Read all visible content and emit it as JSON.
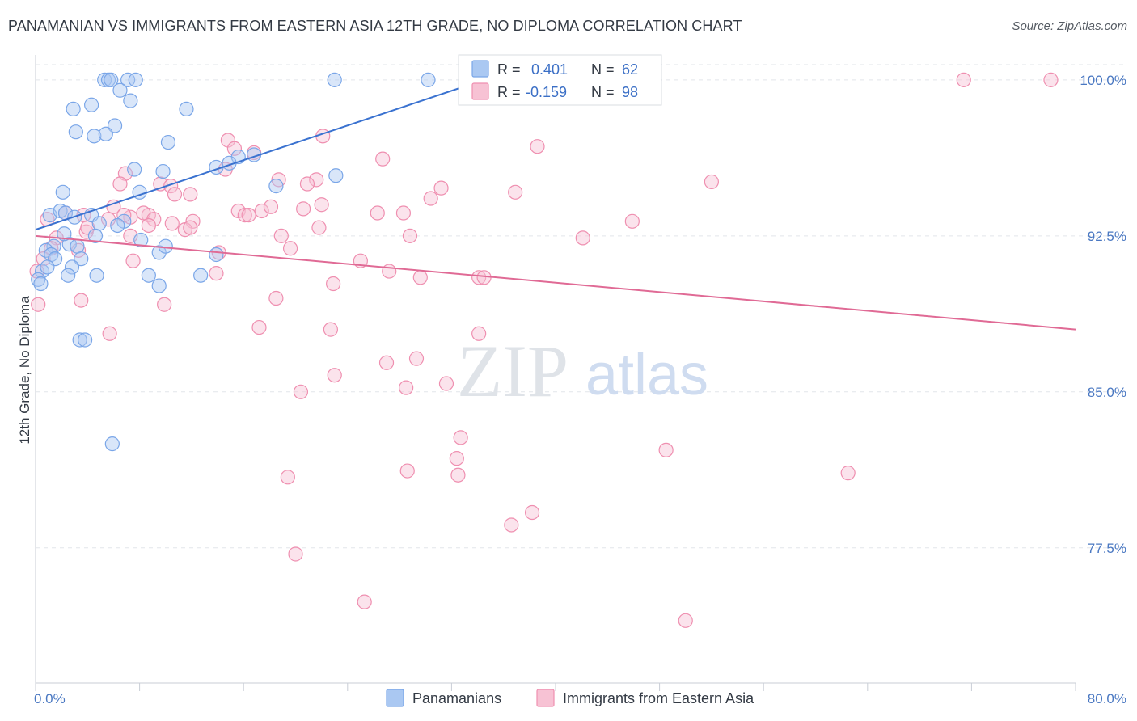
{
  "title": "PANAMANIAN VS IMMIGRANTS FROM EASTERN ASIA 12TH GRADE, NO DIPLOMA CORRELATION CHART",
  "source": "Source: ZipAtlas.com",
  "watermark": {
    "zip": "ZIP",
    "atlas": "atlas"
  },
  "colors": {
    "blue": "#7aa6e8",
    "blue_fill": "#aac8f2",
    "blue_line": "#3a72d0",
    "pink": "#ef8fb0",
    "pink_fill": "#f7c2d4",
    "pink_line": "#e06a95",
    "tick": "#4a78c2"
  },
  "stats_legend": {
    "r_label": "R =",
    "n_label": "N =",
    "rows": [
      {
        "r": "0.401",
        "n": "62",
        "series": "blue"
      },
      {
        "r": "-0.159",
        "n": "98",
        "series": "pink"
      }
    ]
  },
  "chart_data": {
    "type": "scatter",
    "title": "PANAMANIAN VS IMMIGRANTS FROM EASTERN ASIA 12TH GRADE, NO DIPLOMA CORRELATION CHART",
    "xlabel": "",
    "ylabel": "12th Grade, No Diploma",
    "xlim": [
      0,
      80
    ],
    "ylim": [
      71.0,
      101.2
    ],
    "x_tick_labels": [
      "0.0%",
      "80.0%"
    ],
    "y_ticks": [
      77.5,
      85.0,
      92.5,
      100.0
    ],
    "y_tick_labels": [
      "77.5%",
      "85.0%",
      "92.5%",
      "100.0%"
    ],
    "grid": "horizontal dashed",
    "legend_position": "bottom-center",
    "series": [
      {
        "name": "Panamanians",
        "color": "blue",
        "trend": [
          [
            0.0,
            92.8
          ],
          [
            34.5,
            100.0
          ]
        ],
        "points": [
          [
            5.3,
            100
          ],
          [
            5.6,
            100
          ],
          [
            5.8,
            100
          ],
          [
            7.1,
            100
          ],
          [
            7.7,
            100
          ],
          [
            23.0,
            100
          ],
          [
            30.2,
            100
          ],
          [
            40.5,
            100
          ],
          [
            6.5,
            99.5
          ],
          [
            7.3,
            99.0
          ],
          [
            4.3,
            98.8
          ],
          [
            2.9,
            98.6
          ],
          [
            11.6,
            98.6
          ],
          [
            6.1,
            97.8
          ],
          [
            3.1,
            97.5
          ],
          [
            4.5,
            97.3
          ],
          [
            5.4,
            97.4
          ],
          [
            10.2,
            97.0
          ],
          [
            15.6,
            96.3
          ],
          [
            16.8,
            96.4
          ],
          [
            14.9,
            96.0
          ],
          [
            7.6,
            95.7
          ],
          [
            9.8,
            95.6
          ],
          [
            23.1,
            95.4
          ],
          [
            18.5,
            94.9
          ],
          [
            2.1,
            94.6
          ],
          [
            8.0,
            94.6
          ],
          [
            1.1,
            93.5
          ],
          [
            1.9,
            93.7
          ],
          [
            2.3,
            93.6
          ],
          [
            3.0,
            93.4
          ],
          [
            4.3,
            93.5
          ],
          [
            4.9,
            93.1
          ],
          [
            6.8,
            93.2
          ],
          [
            4.6,
            92.5
          ],
          [
            8.1,
            92.3
          ],
          [
            1.4,
            92.0
          ],
          [
            2.6,
            92.1
          ],
          [
            3.2,
            92.0
          ],
          [
            0.8,
            91.8
          ],
          [
            1.2,
            91.6
          ],
          [
            1.5,
            91.4
          ],
          [
            3.5,
            91.4
          ],
          [
            9.5,
            91.7
          ],
          [
            10.0,
            92.0
          ],
          [
            13.9,
            91.6
          ],
          [
            2.8,
            91.0
          ],
          [
            0.5,
            90.8
          ],
          [
            2.5,
            90.6
          ],
          [
            4.7,
            90.6
          ],
          [
            8.7,
            90.6
          ],
          [
            12.7,
            90.6
          ],
          [
            0.2,
            90.4
          ],
          [
            0.4,
            90.2
          ],
          [
            9.5,
            90.1
          ],
          [
            3.4,
            87.5
          ],
          [
            3.8,
            87.5
          ],
          [
            5.9,
            82.5
          ],
          [
            13.9,
            95.8
          ],
          [
            2.2,
            92.6
          ],
          [
            0.9,
            91.0
          ],
          [
            6.3,
            93.0
          ]
        ]
      },
      {
        "name": "Immigrants from Eastern Asia",
        "color": "pink",
        "trend": [
          [
            0.0,
            92.5
          ],
          [
            80.0,
            88.0
          ]
        ],
        "points": [
          [
            38.0,
            100
          ],
          [
            42.3,
            100
          ],
          [
            71.4,
            100
          ],
          [
            78.1,
            100
          ],
          [
            37.8,
            99.5
          ],
          [
            14.8,
            97.1
          ],
          [
            22.1,
            97.3
          ],
          [
            38.6,
            96.8
          ],
          [
            15.3,
            96.7
          ],
          [
            16.8,
            96.5
          ],
          [
            26.7,
            96.2
          ],
          [
            14.6,
            95.7
          ],
          [
            6.9,
            95.5
          ],
          [
            18.7,
            95.2
          ],
          [
            21.6,
            95.2
          ],
          [
            52.0,
            95.1
          ],
          [
            6.5,
            95.0
          ],
          [
            9.6,
            95.0
          ],
          [
            10.4,
            94.9
          ],
          [
            20.9,
            95.0
          ],
          [
            31.2,
            94.8
          ],
          [
            36.9,
            94.6
          ],
          [
            10.7,
            94.5
          ],
          [
            11.9,
            94.5
          ],
          [
            30.4,
            94.3
          ],
          [
            6.0,
            93.9
          ],
          [
            15.6,
            93.7
          ],
          [
            17.4,
            93.7
          ],
          [
            18.1,
            93.9
          ],
          [
            20.6,
            93.8
          ],
          [
            22.0,
            94.0
          ],
          [
            8.7,
            93.5
          ],
          [
            16.1,
            93.5
          ],
          [
            5.6,
            93.3
          ],
          [
            3.7,
            93.5
          ],
          [
            0.9,
            93.3
          ],
          [
            2.3,
            93.6
          ],
          [
            7.3,
            93.4
          ],
          [
            8.3,
            93.6
          ],
          [
            9.1,
            93.3
          ],
          [
            10.5,
            93.1
          ],
          [
            12.1,
            93.2
          ],
          [
            16.4,
            93.5
          ],
          [
            26.3,
            93.6
          ],
          [
            28.3,
            93.6
          ],
          [
            45.9,
            93.2
          ],
          [
            6.8,
            93.5
          ],
          [
            8.7,
            93.0
          ],
          [
            11.5,
            92.8
          ],
          [
            11.9,
            92.9
          ],
          [
            21.8,
            92.9
          ],
          [
            18.9,
            92.5
          ],
          [
            28.8,
            92.5
          ],
          [
            42.1,
            92.4
          ],
          [
            1.6,
            92.4
          ],
          [
            3.9,
            92.7
          ],
          [
            7.3,
            92.5
          ],
          [
            3.3,
            91.8
          ],
          [
            1.2,
            91.9
          ],
          [
            19.6,
            91.9
          ],
          [
            14.1,
            91.7
          ],
          [
            7.5,
            91.3
          ],
          [
            25.0,
            91.3
          ],
          [
            0.6,
            91.4
          ],
          [
            13.9,
            90.7
          ],
          [
            27.2,
            90.8
          ],
          [
            0.1,
            90.8
          ],
          [
            29.6,
            90.5
          ],
          [
            34.1,
            90.5
          ],
          [
            34.5,
            90.5
          ],
          [
            22.9,
            90.2
          ],
          [
            18.5,
            89.5
          ],
          [
            9.9,
            89.2
          ],
          [
            3.5,
            89.4
          ],
          [
            0.2,
            89.2
          ],
          [
            17.2,
            88.1
          ],
          [
            22.7,
            88.0
          ],
          [
            34.1,
            87.8
          ],
          [
            5.7,
            87.8
          ],
          [
            29.3,
            86.6
          ],
          [
            27.0,
            86.4
          ],
          [
            23.0,
            85.8
          ],
          [
            28.5,
            85.2
          ],
          [
            31.6,
            85.4
          ],
          [
            20.4,
            85.0
          ],
          [
            32.7,
            82.8
          ],
          [
            48.5,
            82.2
          ],
          [
            32.4,
            81.8
          ],
          [
            28.6,
            81.2
          ],
          [
            32.5,
            81.0
          ],
          [
            19.4,
            80.9
          ],
          [
            62.5,
            81.1
          ],
          [
            38.2,
            79.2
          ],
          [
            36.6,
            78.6
          ],
          [
            20.0,
            77.2
          ],
          [
            25.3,
            74.9
          ],
          [
            50.0,
            74.0
          ],
          [
            4.0,
            92.9
          ]
        ]
      }
    ]
  },
  "bottom_legend": [
    "Panamanians",
    "Immigrants from Eastern Asia"
  ]
}
